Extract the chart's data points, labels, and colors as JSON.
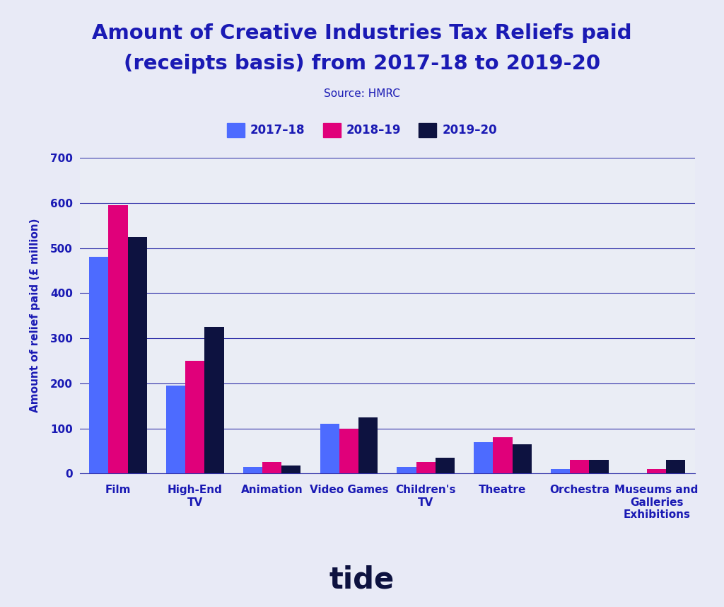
{
  "title_line1": "Amount of Creative Industries Tax Reliefs paid",
  "title_line2": "(receipts basis) from 2017-18 to 2019-20",
  "source": "Source: HMRC",
  "ylabel": "Amount of relief paid (£ million)",
  "footer": "tide",
  "background_color": "#e8eaf6",
  "plot_background_color": "#eaedf5",
  "title_color": "#1a1ab4",
  "axis_color": "#1a1ab4",
  "tick_color": "#1a1ab4",
  "grid_color": "#3333aa",
  "categories": [
    "Film",
    "High-End\nTV",
    "Animation",
    "Video Games",
    "Children's\nTV",
    "Theatre",
    "Orchestra",
    "Museums and\nGalleries\nExhibitions"
  ],
  "series": {
    "2017-18": [
      480,
      195,
      15,
      110,
      15,
      70,
      10,
      0
    ],
    "2018-19": [
      595,
      250,
      25,
      100,
      25,
      80,
      30,
      10
    ],
    "2019-20": [
      525,
      325,
      17,
      125,
      35,
      65,
      30,
      30
    ]
  },
  "colors": {
    "2017-18": "#4d6bff",
    "2018-19": "#e0007a",
    "2019-20": "#0d1240"
  },
  "legend_labels": [
    "2017–18",
    "2018–19",
    "2019–20"
  ],
  "ylim": [
    0,
    700
  ],
  "yticks": [
    0,
    100,
    200,
    300,
    400,
    500,
    600,
    700
  ],
  "title_fontsize": 21,
  "label_fontsize": 11,
  "tick_fontsize": 11,
  "source_fontsize": 11,
  "legend_fontsize": 12,
  "footer_fontsize": 30
}
